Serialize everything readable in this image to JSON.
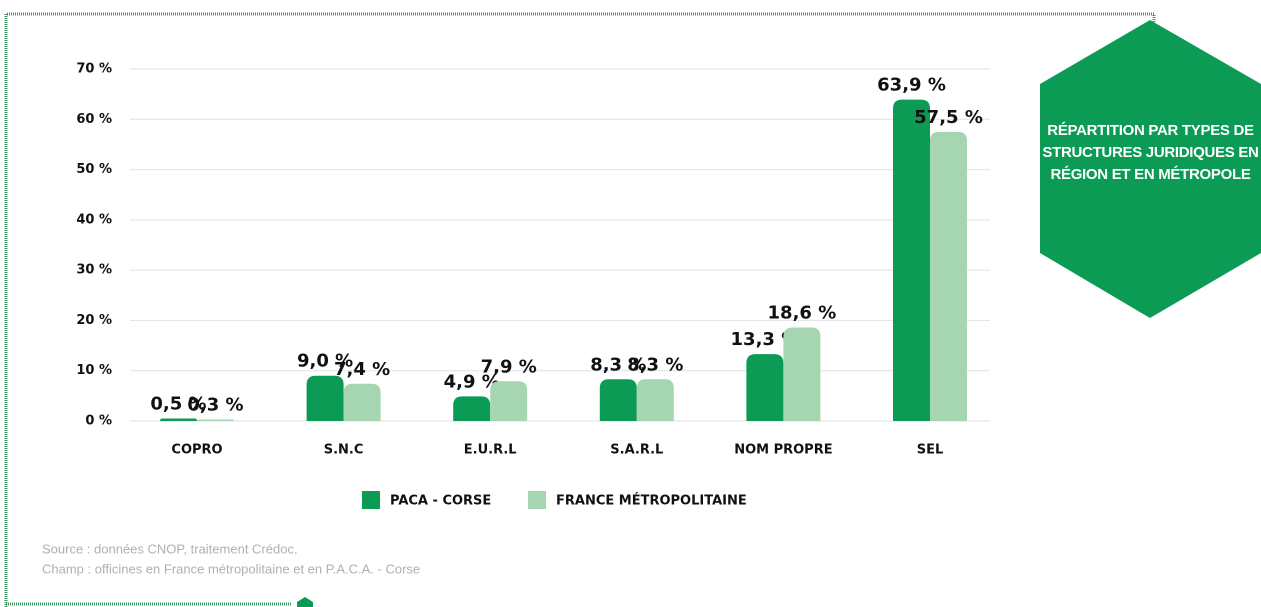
{
  "chart_data": {
    "type": "bar",
    "title": "RÉPARTITION PAR TYPES DE STRUCTURES JURIDIQUES EN RÉGION ET EN MÉTROPOLE",
    "categories": [
      "COPRO",
      "S.N.C",
      "E.U.R.L",
      "S.A.R.L",
      "NOM PROPRE",
      "SEL"
    ],
    "series": [
      {
        "name": "PACA - CORSE",
        "color": "#0b9b55",
        "values": [
          0.5,
          9.0,
          4.9,
          8.3,
          13.3,
          63.9
        ],
        "value_labels": [
          "0,5 %",
          "9,0 %",
          "4,9 %",
          "8,3 %",
          "13,3 %",
          "63,9 %"
        ]
      },
      {
        "name": "FRANCE MÉTROPOLITAINE",
        "color": "#a6d5b2",
        "values": [
          0.3,
          7.4,
          7.9,
          8.3,
          18.6,
          57.5
        ],
        "value_labels": [
          "0,3 %",
          "7,4 %",
          "7,9 %",
          "8,3 %",
          "18,6 %",
          "57,5 %"
        ]
      }
    ],
    "ylim": [
      0,
      70
    ],
    "yticks": [
      {
        "value": 0,
        "label": "0 %"
      },
      {
        "value": 10,
        "label": "10 %"
      },
      {
        "value": 20,
        "label": "20 %"
      },
      {
        "value": 30,
        "label": "30 %"
      },
      {
        "value": 40,
        "label": "40 %"
      },
      {
        "value": 50,
        "label": "50 %"
      },
      {
        "value": 60,
        "label": "60 %"
      },
      {
        "value": 70,
        "label": "70 %"
      }
    ],
    "grid": true,
    "legend": "bottom",
    "notes": [
      "Source : données CNOP, traitement Crédoc.",
      "Champ : officines en France métropolitaine et en P.A.C.A. - Corse"
    ]
  }
}
